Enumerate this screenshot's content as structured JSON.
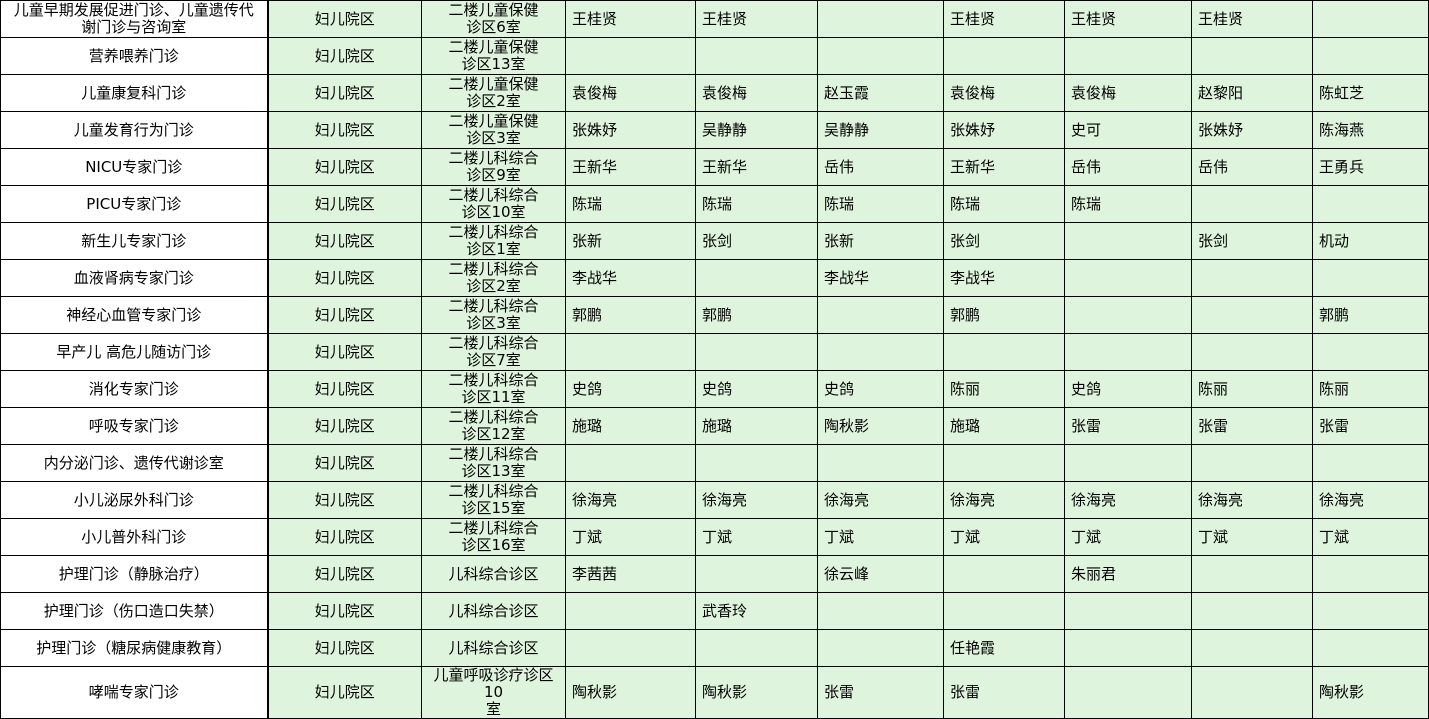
{
  "colors": {
    "cell_green": "#DFF4DD",
    "cell_white": "#FFFFFF",
    "grid_line": "#000000",
    "text": "#000000"
  },
  "table": {
    "rows": [
      {
        "dept": "儿童早期发展促进门诊、儿童遗传代谢门诊与咨询室",
        "campus": "妇儿院区",
        "location": "二楼儿童保健\n诊区6室",
        "doctors": [
          "王桂贤",
          "王桂贤",
          "",
          "王桂贤",
          "王桂贤",
          "王桂贤",
          ""
        ]
      },
      {
        "dept": "营养喂养门诊",
        "campus": "妇儿院区",
        "location": "二楼儿童保健\n诊区13室",
        "doctors": [
          "",
          "",
          "",
          "",
          "",
          "",
          ""
        ]
      },
      {
        "dept": "儿童康复科门诊",
        "campus": "妇儿院区",
        "location": "二楼儿童保健\n诊区2室",
        "doctors": [
          "袁俊梅",
          "袁俊梅",
          "赵玉霞",
          "袁俊梅",
          "袁俊梅",
          "赵黎阳",
          "陈虹芝"
        ]
      },
      {
        "dept": "儿童发育行为门诊",
        "campus": "妇儿院区",
        "location": "二楼儿童保健\n诊区3室",
        "doctors": [
          "张姝妤",
          "吴静静",
          "吴静静",
          "张姝妤",
          "史可",
          "张姝妤",
          "陈海燕"
        ]
      },
      {
        "dept": "NICU专家门诊",
        "campus": "妇儿院区",
        "location": "二楼儿科综合\n诊区9室",
        "doctors": [
          "王新华",
          "王新华",
          "岳伟",
          "王新华",
          "岳伟",
          "岳伟",
          "王勇兵"
        ]
      },
      {
        "dept": "PICU专家门诊",
        "campus": "妇儿院区",
        "location": "二楼儿科综合\n诊区10室",
        "doctors": [
          "陈瑞",
          "陈瑞",
          "陈瑞",
          "陈瑞",
          "陈瑞",
          "",
          ""
        ]
      },
      {
        "dept": "新生儿专家门诊",
        "campus": "妇儿院区",
        "location": "二楼儿科综合\n诊区1室",
        "doctors": [
          "张新",
          "张剑",
          "张新",
          "张剑",
          "",
          "张剑",
          "机动"
        ]
      },
      {
        "dept": "血液肾病专家门诊",
        "campus": "妇儿院区",
        "location": "二楼儿科综合\n诊区2室",
        "doctors": [
          "李战华",
          "",
          "李战华",
          "李战华",
          "",
          "",
          ""
        ]
      },
      {
        "dept": "神经心血管专家门诊",
        "campus": "妇儿院区",
        "location": "二楼儿科综合\n诊区3室",
        "doctors": [
          "郭鹏",
          "郭鹏",
          "",
          "郭鹏",
          "",
          "",
          "郭鹏"
        ]
      },
      {
        "dept": "早产儿 高危儿随访门诊",
        "campus": "妇儿院区",
        "location": "二楼儿科综合\n诊区7室",
        "doctors": [
          "",
          "",
          "",
          "",
          "",
          "",
          ""
        ]
      },
      {
        "dept": "消化专家门诊",
        "campus": "妇儿院区",
        "location": "二楼儿科综合\n诊区11室",
        "doctors": [
          "史鸽",
          "史鸽",
          "史鸽",
          "陈丽",
          "史鸽",
          "陈丽",
          "陈丽"
        ]
      },
      {
        "dept": "呼吸专家门诊",
        "campus": "妇儿院区",
        "location": "二楼儿科综合\n诊区12室",
        "doctors": [
          "施璐",
          "施璐",
          "陶秋影",
          "施璐",
          "张雷",
          "张雷",
          "张雷"
        ]
      },
      {
        "dept": "内分泌门诊、遗传代谢诊室",
        "campus": "妇儿院区",
        "location": "二楼儿科综合\n诊区13室",
        "doctors": [
          "",
          "",
          "",
          "",
          "",
          "",
          ""
        ]
      },
      {
        "dept": "小儿泌尿外科门诊",
        "campus": "妇儿院区",
        "location": "二楼儿科综合\n诊区15室",
        "doctors": [
          "徐海亮",
          "徐海亮",
          "徐海亮",
          "徐海亮",
          "徐海亮",
          "徐海亮",
          "徐海亮"
        ]
      },
      {
        "dept": "小儿普外科门诊",
        "campus": "妇儿院区",
        "location": "二楼儿科综合\n诊区16室",
        "doctors": [
          "丁斌",
          "丁斌",
          "丁斌",
          "丁斌",
          "丁斌",
          "丁斌",
          "丁斌"
        ]
      },
      {
        "dept": "护理门诊（静脉治疗）",
        "campus": "妇儿院区",
        "location": "儿科综合诊区",
        "doctors": [
          "李茜茜",
          "",
          "徐云峰",
          "",
          "朱丽君",
          "",
          ""
        ]
      },
      {
        "dept": "护理门诊（伤口造口失禁）",
        "campus": "妇儿院区",
        "location": "儿科综合诊区",
        "doctors": [
          "",
          "武香玲",
          "",
          "",
          "",
          "",
          ""
        ]
      },
      {
        "dept": "护理门诊（糖尿病健康教育）",
        "campus": "妇儿院区",
        "location": "儿科综合诊区",
        "doctors": [
          "",
          "",
          "",
          "任艳霞",
          "",
          "",
          ""
        ]
      },
      {
        "dept": "哮喘专家门诊",
        "campus": "妇儿院区",
        "location": "儿童呼吸诊疗诊区10\n室",
        "doctors": [
          "陶秋影",
          "陶秋影",
          "张雷",
          "张雷",
          "",
          "",
          "陶秋影"
        ]
      }
    ]
  }
}
